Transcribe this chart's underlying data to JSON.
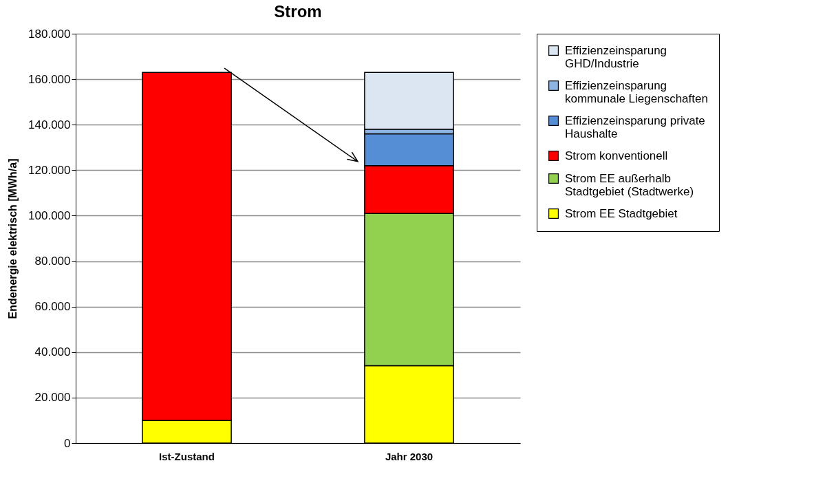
{
  "chart_data": {
    "type": "bar",
    "title": "Strom",
    "ylabel": "Endenergie elektrisch [MWh/a]",
    "categories": [
      "Ist-Zustand",
      "Jahr 2030"
    ],
    "stacked": true,
    "series": [
      {
        "name": "Strom EE Stadtgebiet",
        "color": "#ffff00",
        "values": [
          10000,
          34000
        ]
      },
      {
        "name": "Strom EE außerhalb Stadtgebiet (Stadtwerke)",
        "color": "#92d050",
        "values": [
          null,
          67000
        ]
      },
      {
        "name": "Strom konventionell",
        "color": "#ff0000",
        "values": [
          153000,
          21000
        ]
      },
      {
        "name": "Effizienzeinsparung private Haushalte",
        "color": "#558ed5",
        "values": [
          null,
          14000
        ]
      },
      {
        "name": "Effizienzeinsparung kommunale Liegenschaften",
        "color": "#8eb4e3",
        "values": [
          null,
          2000
        ]
      },
      {
        "name": "Effizienzeinsparung GHD/Industrie",
        "color": "#dce6f2",
        "values": [
          null,
          25000
        ]
      }
    ],
    "ylim": [
      0,
      180000
    ],
    "yticks": [
      0,
      {
        "value": 20000,
        "label": "20.000"
      },
      {
        "value": 40000,
        "label": "40.000"
      },
      {
        "value": 60000,
        "label": "60.000"
      },
      {
        "value": 80000,
        "label": "80.000"
      },
      {
        "value": 100000,
        "label": "100.000"
      },
      {
        "value": 120000,
        "label": "120.000"
      },
      {
        "value": 140000,
        "label": "140.000"
      },
      {
        "value": 160000,
        "label": "160.000"
      },
      {
        "value": 180000,
        "label": "180.000"
      }
    ],
    "grid": "y",
    "legend": "right"
  }
}
